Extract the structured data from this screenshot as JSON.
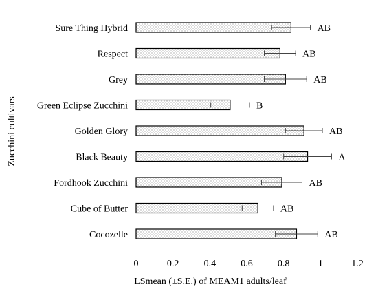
{
  "chart_data": {
    "type": "bar",
    "orientation": "horizontal",
    "title": "",
    "xlabel": "LSmean (±S.E.) of MEAM1 adults/leaf",
    "ylabel": "Zucchini cultivars",
    "xlim": [
      0,
      1.2
    ],
    "xticks": [
      "0",
      "0.2",
      "0.4",
      "0.6",
      "0.8",
      "1",
      "1.2"
    ],
    "grid": false,
    "legend": "none",
    "bar_fill": "dotted pattern",
    "categories": [
      "Sure Thing Hybrid",
      "Respect",
      "Grey",
      "Green Eclipse Zucchini",
      "Golden Glory",
      "Black Beauty",
      "Fordhook Zucchini",
      "Cube of Butter",
      "Cocozelle"
    ],
    "values": [
      0.84,
      0.78,
      0.81,
      0.51,
      0.91,
      0.93,
      0.79,
      0.66,
      0.87
    ],
    "errors": [
      0.105,
      0.085,
      0.115,
      0.105,
      0.1,
      0.13,
      0.11,
      0.085,
      0.115
    ],
    "letters": [
      "AB",
      "AB",
      "AB",
      "B",
      "AB",
      "A",
      "AB",
      "AB",
      "AB"
    ]
  }
}
